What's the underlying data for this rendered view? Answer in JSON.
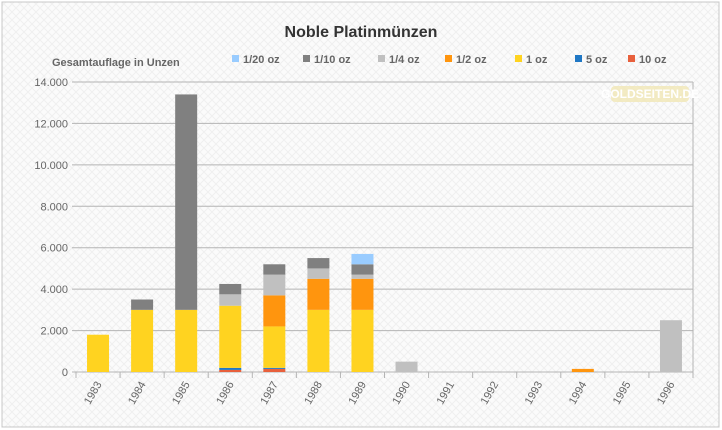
{
  "chart_data": {
    "type": "bar",
    "stacked": true,
    "title": "Noble Platinmünzen",
    "ylabel": "Gesamtauflage in Unzen",
    "xlabel": "",
    "ylim": [
      0,
      14000
    ],
    "yticks": [
      "0",
      "2.000",
      "4.000",
      "6.000",
      "8.000",
      "10.000",
      "12.000",
      "14.000"
    ],
    "grid": true,
    "legend_position": "top",
    "watermark": "GOLDSEITEN.DE",
    "categories": [
      "1983",
      "1984",
      "1985",
      "1986",
      "1987",
      "1988",
      "1989",
      "1990",
      "1991",
      "1992",
      "1993",
      "1994",
      "1995",
      "1996"
    ],
    "series": [
      {
        "name": "10 oz",
        "color": "#e8603c",
        "values": [
          0,
          0,
          0,
          100,
          150,
          0,
          0,
          0,
          0,
          0,
          0,
          0,
          0,
          0
        ]
      },
      {
        "name": "5 oz",
        "color": "#1f77c4",
        "values": [
          0,
          0,
          0,
          100,
          50,
          0,
          0,
          0,
          0,
          0,
          0,
          0,
          0,
          0
        ]
      },
      {
        "name": "1 oz",
        "color": "#ffd320",
        "values": [
          1800,
          3000,
          3000,
          3000,
          2000,
          3000,
          3000,
          0,
          0,
          0,
          0,
          0,
          0,
          0
        ]
      },
      {
        "name": "1/2 oz",
        "color": "#ff950e",
        "values": [
          0,
          0,
          0,
          0,
          1500,
          1500,
          1500,
          0,
          0,
          0,
          0,
          150,
          0,
          0
        ]
      },
      {
        "name": "1/4 oz",
        "color": "#c0c0c0",
        "values": [
          0,
          0,
          0,
          550,
          1000,
          500,
          200,
          500,
          0,
          0,
          0,
          0,
          0,
          2500
        ]
      },
      {
        "name": "1/10 oz",
        "color": "#808080",
        "values": [
          0,
          500,
          10400,
          500,
          500,
          500,
          500,
          0,
          0,
          0,
          0,
          0,
          0,
          0
        ]
      },
      {
        "name": "1/20 oz",
        "color": "#99ccff",
        "values": [
          0,
          0,
          0,
          0,
          0,
          0,
          500,
          0,
          0,
          0,
          0,
          0,
          0,
          0
        ]
      }
    ]
  }
}
